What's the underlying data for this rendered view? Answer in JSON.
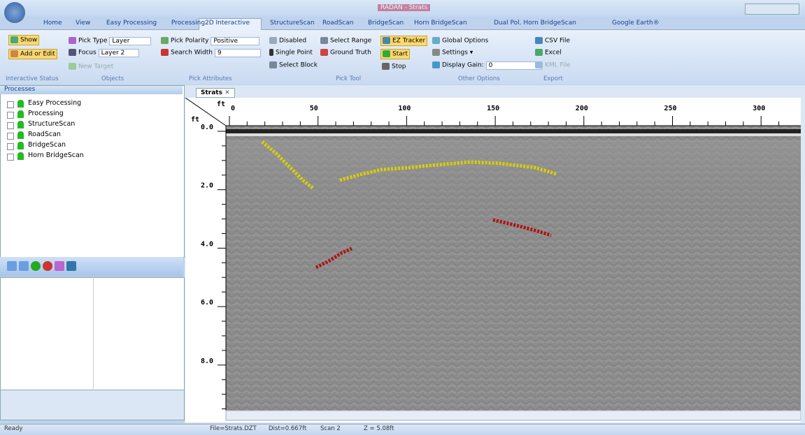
{
  "window": {
    "title": "RADAN - Strats"
  },
  "tabs": [
    "Home",
    "View",
    "Easy Processing",
    "Processing",
    "2D Interactive",
    "StructureScan",
    "RoadScan",
    "BridgeScan",
    "Horn BridgeScan",
    "Dual Pol. Horn BridgeScan",
    "Google Earth®"
  ],
  "ribbon": {
    "interactive_status": {
      "label": "Interactive Status",
      "show": "Show",
      "add_or_edit": "Add or Edit"
    },
    "objects": {
      "label": "Objects",
      "pick_type": "Pick Type",
      "pick_type_value": "Layer",
      "focus": "Focus",
      "focus_value": "Layer 2",
      "new_target": "New Target"
    },
    "pick_attributes": {
      "label": "Pick Attributes",
      "pick_polarity": "Pick Polarity",
      "pick_polarity_value": "Positive",
      "search_width": "Search Width",
      "search_width_value": "9"
    },
    "pick_tool": {
      "label": "Pick Tool",
      "disabled": "Disabled",
      "single_point": "Single Point",
      "select_block": "Select Block",
      "select_range": "Select Range",
      "ground_truth": "Ground Truth",
      "ez_tracker": "EZ Tracker",
      "start": "Start",
      "stop": "Stop"
    },
    "other_options": {
      "label": "Other Options",
      "global_options": "Global Options",
      "settings": "Settings",
      "display_gain": "Display Gain:",
      "display_gain_value": "0"
    },
    "export": {
      "label": "Export",
      "csv": "CSV File",
      "excel": "Excel",
      "kml": "KML File"
    }
  },
  "processes": {
    "title": "Processes",
    "items": [
      "Easy Processing",
      "Processing",
      "StructureScan",
      "RoadScan",
      "BridgeScan",
      "Horn BridgeScan"
    ]
  },
  "document": {
    "tab": "Strats",
    "x_unit": "ft",
    "y_unit": "ft",
    "x_ticks": [
      "0",
      "50",
      "100",
      "150",
      "200",
      "250",
      "300"
    ],
    "y_ticks": [
      "0.0",
      "2.0",
      "4.0",
      "6.0",
      "8.0"
    ]
  },
  "status": [
    "Ready",
    "File=Strats.DZT",
    "Dist=0.667ft",
    "Scan 2",
    "Z = 5.08ft"
  ]
}
